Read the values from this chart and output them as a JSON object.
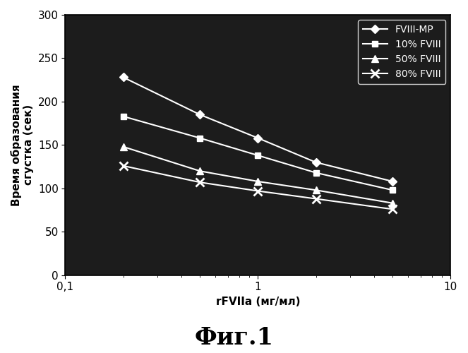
{
  "title": "Фиг.1",
  "xlabel": "rFVIIa (мг/мл)",
  "ylabel": "Время образования\nсгустка (сек)",
  "figure_bg_color": "#ffffff",
  "plot_bg_color": "#1c1c1c",
  "axes_text_color": "#000000",
  "plot_line_color": "#ffffff",
  "xlim": [
    0.1,
    10
  ],
  "ylim": [
    0,
    300
  ],
  "yticks": [
    0,
    50,
    100,
    150,
    200,
    250,
    300
  ],
  "series": [
    {
      "label": "FVIII-MP",
      "x": [
        0.2,
        0.5,
        1.0,
        2.0,
        5.0
      ],
      "y": [
        228,
        185,
        158,
        130,
        108
      ],
      "marker": "D",
      "linewidth": 1.5,
      "markersize": 6
    },
    {
      "label": "10% FVIII",
      "x": [
        0.2,
        0.5,
        1.0,
        2.0,
        5.0
      ],
      "y": [
        183,
        158,
        138,
        118,
        98
      ],
      "marker": "s",
      "linewidth": 1.5,
      "markersize": 6
    },
    {
      "label": "50% FVIII",
      "x": [
        0.2,
        0.5,
        1.0,
        2.0,
        5.0
      ],
      "y": [
        148,
        120,
        108,
        98,
        83
      ],
      "marker": "^",
      "linewidth": 1.5,
      "markersize": 7
    },
    {
      "label": "80% FVIII",
      "x": [
        0.2,
        0.5,
        1.0,
        2.0,
        5.0
      ],
      "y": [
        126,
        107,
        97,
        88,
        76
      ],
      "marker": "x",
      "linewidth": 1.5,
      "markersize": 8,
      "markeredgewidth": 2
    }
  ],
  "xtick_labels": [
    "0,1",
    "1",
    "10"
  ],
  "xtick_positions": [
    0.1,
    1.0,
    10.0
  ],
  "xtick_minor": [
    0.2,
    0.3,
    0.4,
    0.5,
    0.6,
    0.7,
    0.8,
    0.9,
    2.0,
    3.0,
    4.0,
    5.0,
    6.0,
    7.0,
    8.0,
    9.0
  ],
  "title_fontsize": 24,
  "axis_label_fontsize": 11,
  "tick_labelsize": 11,
  "legend_fontsize": 10
}
